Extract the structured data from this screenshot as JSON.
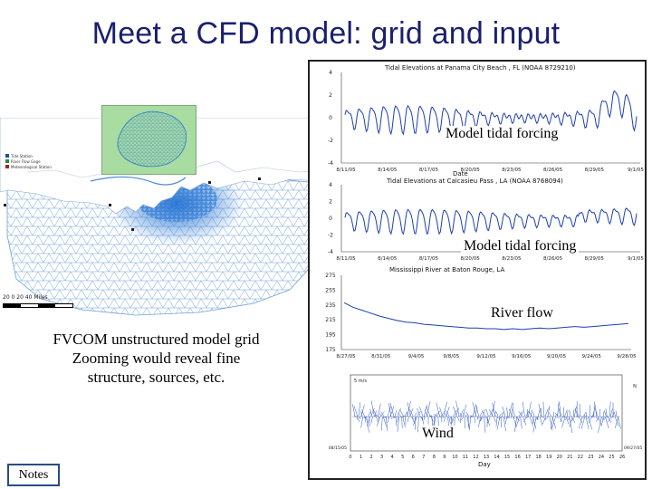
{
  "slide": {
    "title": "Meet a CFD model: grid and input",
    "grid_caption_line1": "FVCOM unstructured model grid",
    "grid_caption_line2": "Zooming would reveal fine",
    "grid_caption_line3": "structure, sources, etc.",
    "notes_button": "Notes"
  },
  "map": {
    "legend": [
      "Tide Station",
      "River Flow Gage",
      "Meteorological Station"
    ],
    "scale_label": "20  0   20   40  Miles",
    "colors": {
      "grid": "#6fa0d8",
      "grid_dense": "#1e6fd0",
      "land": "#ffffff",
      "inset": "#a8dca0"
    }
  },
  "labels": {
    "tide1": "Model tidal forcing",
    "tide2": "Model tidal forcing",
    "river": "River flow",
    "wind": "Wind"
  },
  "chart_data": [
    {
      "type": "line",
      "title": "Tidal Elevations at Panama City Beach , FL (NOAA 8729210)",
      "xlabel": "Date",
      "ylabel": "",
      "x_ticks": [
        "8/11/05",
        "8/14/05",
        "8/17/05",
        "8/20/05",
        "8/23/05",
        "8/26/05",
        "8/29/05",
        "9/1/05"
      ],
      "y_ticks": [
        4,
        2,
        0,
        -2,
        -4
      ],
      "ylim": [
        -4,
        4
      ],
      "series": [
        {
          "name": "Tidal elevation",
          "color": "#1d3fae"
        }
      ]
    },
    {
      "type": "line",
      "title": "Tidal Elevations at Calcasieu Pass , LA (NOAA 8768094)",
      "xlabel": "",
      "ylabel": "",
      "x_ticks": [
        "8/11/05",
        "8/14/05",
        "8/17/05",
        "8/20/05",
        "8/23/05",
        "8/26/05",
        "8/29/05",
        "9/1/05"
      ],
      "y_ticks": [
        4,
        2,
        0,
        -2,
        -4
      ],
      "ylim": [
        -4,
        4
      ],
      "series": [
        {
          "name": "Tidal elevation",
          "color": "#1d3fae"
        }
      ]
    },
    {
      "type": "line",
      "title": "Mississippi River at Baton Rouge, LA",
      "x_ticks": [
        "8/27/05",
        "8/31/05",
        "9/4/05",
        "9/8/05",
        "9/12/05",
        "9/16/05",
        "9/20/05",
        "9/24/05",
        "9/28/05"
      ],
      "y_ticks": [
        275,
        255,
        235,
        215,
        195,
        175
      ],
      "ylim": [
        175,
        275
      ],
      "series": [
        {
          "name": "River flow",
          "color": "#1d3fae",
          "values": [
            238,
            232,
            228,
            224,
            220,
            217,
            214,
            212,
            211,
            209,
            208,
            207,
            206,
            205,
            204,
            204,
            203,
            203,
            202,
            203,
            202,
            203,
            204,
            203,
            204,
            205,
            206,
            205,
            206,
            207,
            208,
            209,
            210
          ]
        }
      ]
    },
    {
      "type": "line",
      "title": "",
      "xlabel": "Day",
      "x_ticks": [
        "0",
        "1",
        "2",
        "3",
        "4",
        "5",
        "6",
        "7",
        "8",
        "9",
        "10",
        "11",
        "12",
        "13",
        "14",
        "15",
        "16",
        "17",
        "18",
        "19",
        "20",
        "21",
        "22",
        "23",
        "24",
        "25",
        "26"
      ],
      "corner_labels": {
        "top_left": "5 m/s",
        "top_right": "N",
        "bottom_left": "08/15/05",
        "bottom_right": "09/27/05"
      },
      "series": [
        {
          "name": "Wind vectors",
          "color": "#2a55c8"
        }
      ]
    }
  ]
}
